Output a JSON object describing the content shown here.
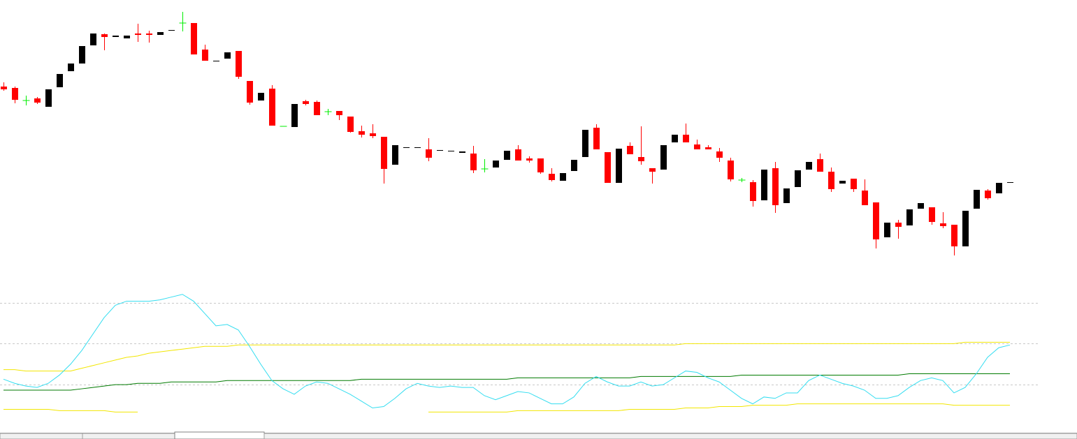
{
  "chart_data": [
    {
      "type": "candlestick",
      "up_color": "#000000",
      "down_color": "#ff0000",
      "doji_color": "#00ee00",
      "ylim": [
        0,
        400
      ],
      "open": [
        276,
        274,
        256,
        259,
        247,
        275,
        298,
        309,
        335,
        351,
        347,
        345,
        352,
        352,
        350,
        356,
        367,
        367,
        329,
        312,
        316,
        327,
        284,
        256,
        273,
        219,
        218,
        255,
        254,
        240,
        241,
        233,
        212,
        209,
        204,
        164,
        188,
        188,
        186,
        184,
        183,
        181,
        180,
        158,
        160,
        171,
        186,
        173,
        173,
        151,
        141,
        155,
        175,
        217,
        182,
        138,
        191,
        175,
        159,
        157,
        196,
        207,
        193,
        189,
        183,
        170,
        142,
        139,
        113,
        159,
        109,
        132,
        157,
        172,
        154,
        137,
        144,
        127,
        110,
        60,
        81,
        77,
        101,
        103,
        80,
        78,
        47,
        101,
        127,
        123,
        138
      ],
      "high": [
        282,
        276,
        263,
        261,
        272,
        294,
        309,
        334,
        352,
        352,
        349,
        349,
        366,
        356,
        354,
        357,
        383,
        367,
        336,
        313,
        325,
        327,
        284,
        267,
        278,
        219,
        251,
        257,
        256,
        244,
        241,
        233,
        220,
        222,
        204,
        192,
        189,
        189,
        202,
        185,
        184,
        183,
        191,
        172,
        170,
        184,
        192,
        176,
        173,
        159,
        152,
        171,
        214,
        222,
        182,
        187,
        196,
        219,
        159,
        192,
        207,
        223,
        200,
        192,
        188,
        174,
        145,
        142,
        157,
        168,
        130,
        156,
        168,
        180,
        160,
        141,
        144,
        143,
        110,
        81,
        85,
        100,
        109,
        103,
        96,
        78,
        98,
        128,
        129,
        138,
        139
      ],
      "low": [
        270,
        252,
        249,
        251,
        247,
        275,
        298,
        309,
        335,
        328,
        347,
        345,
        340,
        339,
        350,
        356,
        355,
        322,
        313,
        312,
        316,
        287,
        250,
        256,
        220,
        219,
        218,
        249,
        235,
        235,
        228,
        210,
        203,
        202,
        137,
        164,
        188,
        188,
        169,
        184,
        183,
        181,
        152,
        153,
        160,
        171,
        170,
        167,
        151,
        140,
        141,
        155,
        175,
        186,
        138,
        138,
        179,
        164,
        137,
        157,
        196,
        196,
        186,
        186,
        168,
        140,
        139,
        104,
        113,
        95,
        109,
        132,
        157,
        154,
        125,
        137,
        125,
        106,
        44,
        60,
        58,
        77,
        101,
        78,
        73,
        34,
        47,
        101,
        114,
        123,
        138
      ],
      "close": [
        272,
        257,
        256,
        253,
        272,
        294,
        309,
        334,
        352,
        347,
        349,
        349,
        350,
        350,
        354,
        357,
        367,
        322,
        313,
        313,
        325,
        290,
        253,
        267,
        220,
        219,
        251,
        251,
        235,
        240,
        235,
        211,
        207,
        205,
        158,
        192,
        189,
        189,
        174,
        185,
        184,
        183,
        156,
        158,
        170,
        184,
        170,
        170,
        153,
        142,
        152,
        171,
        214,
        186,
        138,
        187,
        179,
        169,
        154,
        192,
        207,
        196,
        186,
        186,
        174,
        143,
        142,
        112,
        157,
        106,
        130,
        156,
        168,
        154,
        129,
        141,
        129,
        106,
        57,
        81,
        75,
        100,
        109,
        82,
        76,
        47,
        98,
        128,
        116,
        138,
        139
      ]
    },
    {
      "type": "line",
      "ylim": [
        -10,
        92
      ],
      "yticks": [
        20,
        50,
        80
      ],
      "grid": "dashed",
      "series": [
        {
          "color": "#f2e600",
          "values": [
            31,
            31,
            30,
            30,
            30,
            30,
            30,
            32,
            34,
            36,
            38,
            40,
            41,
            43,
            44,
            45,
            46,
            47,
            48,
            48,
            48,
            49,
            49,
            49,
            49,
            49,
            49,
            49,
            49,
            49,
            49,
            49,
            49,
            49,
            49,
            49,
            49,
            49,
            49,
            49,
            49,
            49,
            49,
            49,
            49,
            49,
            49,
            49,
            49,
            49,
            49,
            49,
            49,
            49,
            49,
            49,
            49,
            49,
            49,
            49,
            49,
            50,
            50,
            50,
            50,
            50,
            50,
            50,
            50,
            50,
            50,
            50,
            50,
            50,
            50,
            50,
            50,
            50,
            50,
            50,
            50,
            50,
            50,
            50,
            50,
            50,
            51,
            51,
            51,
            51,
            51
          ]
        },
        {
          "color": "#f2e600",
          "values": [
            2,
            2,
            2,
            2,
            2,
            1,
            1,
            1,
            1,
            1,
            0,
            0,
            0,
            null,
            null,
            null,
            null,
            null,
            null,
            null,
            null,
            null,
            null,
            null,
            null,
            null,
            null,
            null,
            null,
            null,
            null,
            null,
            null,
            null,
            null,
            null,
            null,
            null,
            0,
            0,
            0,
            0,
            0,
            0,
            0,
            0,
            1,
            1,
            1,
            1,
            1,
            1,
            1,
            1,
            1,
            1,
            2,
            2,
            2,
            2,
            2,
            3,
            3,
            3,
            4,
            4,
            4,
            5,
            5,
            5,
            5,
            6,
            6,
            6,
            6,
            6,
            6,
            6,
            6,
            6,
            6,
            6,
            6,
            6,
            6,
            5,
            5,
            5,
            5,
            5,
            5
          ]
        },
        {
          "color": "#007a00",
          "values": [
            16,
            16,
            16,
            16,
            16,
            16,
            16,
            17,
            18,
            19,
            20,
            20,
            21,
            21,
            21,
            22,
            22,
            22,
            22,
            22,
            23,
            23,
            23,
            23,
            23,
            23,
            23,
            23,
            23,
            23,
            23,
            23,
            24,
            24,
            24,
            24,
            24,
            24,
            24,
            24,
            24,
            24,
            24,
            24,
            24,
            24,
            25,
            25,
            25,
            25,
            25,
            25,
            25,
            25,
            25,
            25,
            25,
            26,
            26,
            26,
            26,
            26,
            26,
            26,
            26,
            26,
            27,
            27,
            27,
            27,
            27,
            27,
            27,
            27,
            27,
            27,
            27,
            27,
            27,
            27,
            27,
            28,
            28,
            28,
            28,
            28,
            28,
            28,
            28,
            28,
            28
          ]
        },
        {
          "color": "#33ddf0",
          "values": [
            24,
            21,
            19,
            18,
            21,
            27,
            35,
            45,
            57,
            69,
            78,
            81,
            81,
            81,
            82,
            84,
            86,
            81,
            72,
            63,
            64,
            60,
            48,
            35,
            23,
            17,
            13,
            19,
            22,
            21,
            17,
            13,
            8,
            3,
            4,
            10,
            17,
            21,
            19,
            18,
            19,
            18,
            18,
            12,
            9,
            12,
            15,
            14,
            10,
            6,
            6,
            11,
            21,
            26,
            22,
            19,
            19,
            22,
            19,
            20,
            25,
            30,
            29,
            25,
            22,
            16,
            10,
            6,
            11,
            10,
            14,
            14,
            23,
            27,
            24,
            21,
            19,
            16,
            10,
            10,
            12,
            18,
            23,
            25,
            23,
            14,
            18,
            28,
            40,
            47,
            49
          ]
        }
      ]
    }
  ]
}
